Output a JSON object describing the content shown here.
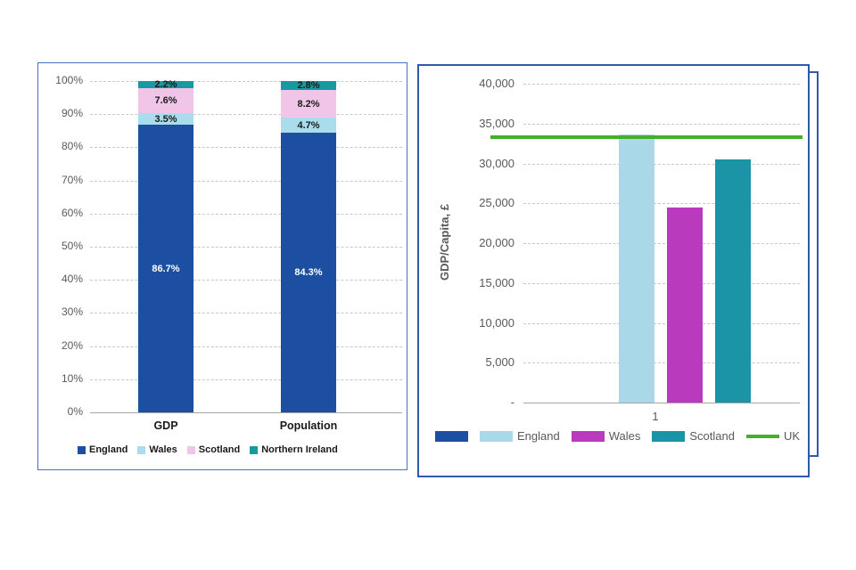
{
  "frames": {
    "left_border_color": "#4472C4",
    "right_border_color": "#2E5AA7"
  },
  "chart_data": [
    {
      "type": "bar",
      "subtype": "stacked-100",
      "title": "",
      "categories": [
        "GDP",
        "Population"
      ],
      "series": [
        {
          "name": "England",
          "color": "#1C4FA1",
          "label_color": "#FFFFFF",
          "values": [
            86.7,
            84.3
          ],
          "labels": [
            "86.7%",
            "84.3%"
          ]
        },
        {
          "name": "Wales",
          "color": "#A9DCEC",
          "label_color": "#1A1A1A",
          "values": [
            3.5,
            4.7
          ],
          "labels": [
            "3.5%",
            "4.7%"
          ]
        },
        {
          "name": "Scotland",
          "color": "#F0C5E8",
          "label_color": "#1A1A1A",
          "values": [
            7.6,
            8.2
          ],
          "labels": [
            "7.6%",
            "8.2%"
          ]
        },
        {
          "name": "Northern Ireland",
          "color": "#16999F",
          "label_color": "#1A1A1A",
          "values": [
            2.2,
            2.8
          ],
          "labels": [
            "2.2%",
            "2.8%"
          ]
        }
      ],
      "y_ticks": [
        "100%",
        "90%",
        "80%",
        "70%",
        "60%",
        "50%",
        "40%",
        "30%",
        "20%",
        "10%",
        "0%"
      ],
      "ylim": [
        0,
        100
      ],
      "grid": "dashed-horizontal",
      "legend_position": "bottom"
    },
    {
      "type": "bar",
      "title": "",
      "ylabel": "GDP/Capita, £",
      "y_ticks": [
        "40,000",
        "35,000",
        "30,000",
        "25,000",
        "20,000",
        "15,000",
        "10,000",
        "5,000",
        "-"
      ],
      "ylim": [
        0,
        40000
      ],
      "x_ticks": [
        "1"
      ],
      "bars": [
        {
          "name": "England",
          "color": "#A9D8E9",
          "value": 33600
        },
        {
          "name": "Wales",
          "color": "#B93ABC",
          "value": 24500
        },
        {
          "name": "Scotland",
          "color": "#1A94A6",
          "value": 30500
        }
      ],
      "reference_line": {
        "name": "UK",
        "color": "#43B02A",
        "value": 33300
      },
      "legend": [
        {
          "label": "",
          "swatch": "box",
          "color": "#1C4FA1"
        },
        {
          "label": "England",
          "swatch": "box",
          "color": "#A9D8E9"
        },
        {
          "label": "Wales",
          "swatch": "box",
          "color": "#B93ABC"
        },
        {
          "label": "Scotland",
          "swatch": "box",
          "color": "#1A94A6"
        },
        {
          "label": "UK",
          "swatch": "line",
          "color": "#43B02A"
        }
      ],
      "grid": "dashed-horizontal",
      "legend_position": "bottom"
    }
  ]
}
